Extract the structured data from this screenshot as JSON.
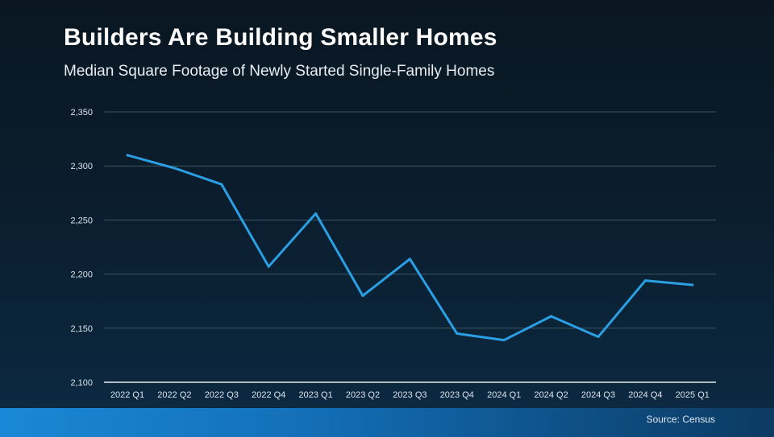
{
  "header": {
    "title": "Builders Are Building Smaller Homes",
    "subtitle": "Median Square Footage of Newly Started Single-Family Homes"
  },
  "footer": {
    "source_label": "Source:",
    "source_value": "Census"
  },
  "colors": {
    "line": "#2b9fe3",
    "grid": "#3d5466",
    "baseline": "#e8eef3",
    "tick_text": "#dbe4ec"
  },
  "chart_data": {
    "type": "line",
    "title": "Builders Are Building Smaller Homes",
    "subtitle": "Median Square Footage of Newly Started Single-Family Homes",
    "xlabel": "",
    "ylabel": "",
    "ylim": [
      2100,
      2350
    ],
    "yticks": [
      2100,
      2150,
      2200,
      2250,
      2300,
      2350
    ],
    "ytick_labels": [
      "2,100",
      "2,150",
      "2,200",
      "2,250",
      "2,300",
      "2,350"
    ],
    "grid": true,
    "legend": "none",
    "categories": [
      "2022 Q1",
      "2022 Q2",
      "2022 Q3",
      "2022 Q4",
      "2023 Q1",
      "2023 Q2",
      "2023 Q3",
      "2023 Q4",
      "2024 Q1",
      "2024 Q2",
      "2024 Q3",
      "2024 Q4",
      "2025 Q1"
    ],
    "series": [
      {
        "name": "Median Square Footage",
        "values": [
          2310,
          2298,
          2283,
          2207,
          2256,
          2180,
          2214,
          2145,
          2139,
          2161,
          2142,
          2194,
          2190
        ]
      }
    ]
  }
}
